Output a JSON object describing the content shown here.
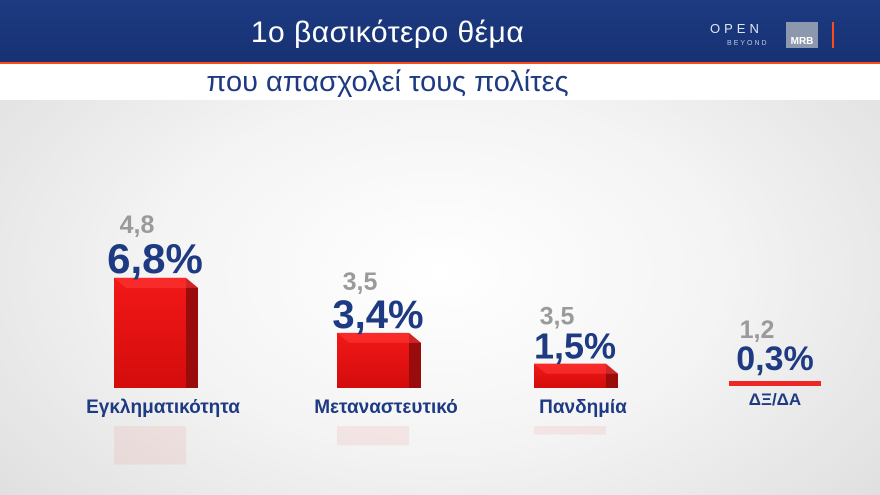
{
  "header": {
    "title": "1ο βασικότερο θέμα",
    "subtitle": "που απασχολεί τους πολίτες",
    "logo_text": "OPEN",
    "logo_subtext": "BEYOND",
    "mrb_logo": "MRB"
  },
  "colors": {
    "header_bg": "#1d3a82",
    "accent": "#ff4a1c",
    "bar_red": "#ee1c1c",
    "value_blue": "#1d3a82",
    "previous_gray": "#9a9a9a"
  },
  "chart_data": {
    "type": "bar",
    "title": "1ο βασικότερο θέμα",
    "subtitle": "που απασχολεί τους πολίτες",
    "categories": [
      "Εγκληματικότητα",
      "Μεταναστευτικό",
      "Πανδημία",
      "ΔΞ/ΔΑ"
    ],
    "series": [
      {
        "values": [
          6.8,
          3.4,
          1.5,
          0.3
        ],
        "labels": [
          "6,8%",
          "3,4%",
          "1,5%",
          "0,3%"
        ]
      },
      {
        "values": [
          4.8,
          3.5,
          3.5,
          1.2
        ],
        "labels": [
          "4,8",
          "3,5",
          "3,5",
          "1,2"
        ]
      }
    ],
    "ylim": [
      0,
      7
    ],
    "grid": false
  }
}
